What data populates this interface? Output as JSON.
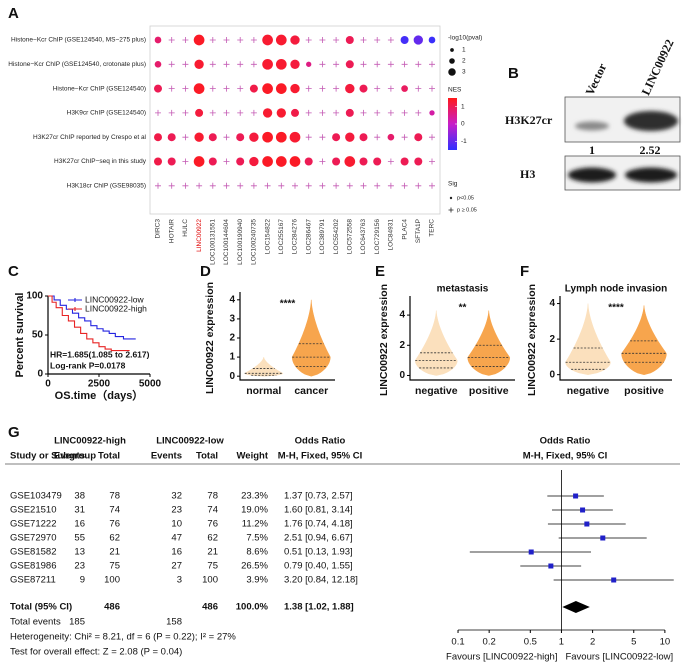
{
  "panel_a": {
    "label": "A",
    "rows": [
      "Histone−Kcr ChIP (GSE124540, MS−275 plus)",
      "Histone−Kcr ChIP (GSE124540, crotonate plus)",
      "Histone−Kcr ChIP (GSE124540)",
      "H3K9cr ChIP (GSE124540)",
      "H3K27cr ChIP reported by Crespo et al",
      "H3K27cr ChIP−seq in this study",
      "H3K18cr ChIP (GSE98035)"
    ],
    "columns": [
      "DIRC3",
      "HOTAIR",
      "HULC",
      "LINC00922",
      "LOC100131551",
      "LOC100144604",
      "LOC100190940",
      "LOC100240735",
      "LOC154822",
      "LOC255167",
      "LOC284276",
      "LOC286467",
      "LOC389791",
      "LOC554202",
      "LOC572558",
      "LOC643763",
      "LOC729156",
      "LOC84931",
      "PLAC4",
      "SFTA1P",
      "TERC"
    ],
    "column_colors": [
      "#333333",
      "#333333",
      "#333333",
      "#e00000",
      "#333333",
      "#333333",
      "#333333",
      "#333333",
      "#333333",
      "#333333",
      "#333333",
      "#333333",
      "#333333",
      "#333333",
      "#333333",
      "#333333",
      "#333333",
      "#333333",
      "#333333",
      "#333333",
      "#333333"
    ],
    "pval": [
      [
        1.5,
        null,
        null,
        3,
        null,
        null,
        null,
        null,
        3,
        3,
        2.5,
        null,
        null,
        null,
        2,
        null,
        null,
        null,
        2,
        2.5,
        1.5
      ],
      [
        1.5,
        null,
        null,
        2.5,
        null,
        null,
        null,
        null,
        3,
        3,
        2.5,
        1,
        null,
        null,
        2,
        null,
        null,
        null,
        null,
        null,
        null
      ],
      [
        2,
        null,
        null,
        3,
        null,
        null,
        null,
        2,
        3,
        3,
        2.5,
        null,
        null,
        null,
        2.5,
        2,
        null,
        null,
        1.5,
        null,
        null
      ],
      [
        null,
        null,
        null,
        2,
        null,
        null,
        null,
        null,
        2.5,
        2.5,
        2,
        null,
        null,
        null,
        2,
        null,
        null,
        null,
        null,
        null,
        1
      ],
      [
        2,
        2,
        null,
        2.5,
        2,
        null,
        2,
        2.5,
        3,
        3,
        3,
        null,
        null,
        2,
        2.5,
        2,
        null,
        1.5,
        null,
        2,
        null
      ],
      [
        2,
        2,
        null,
        3,
        2,
        null,
        2,
        2.5,
        3,
        3,
        3,
        2,
        null,
        2,
        3,
        2,
        2,
        null,
        2,
        2,
        null
      ],
      [
        null,
        null,
        null,
        null,
        null,
        null,
        null,
        null,
        null,
        null,
        null,
        null,
        null,
        null,
        null,
        null,
        null,
        null,
        null,
        null,
        null
      ]
    ],
    "nes": [
      [
        0.8,
        null,
        null,
        1.4,
        null,
        null,
        null,
        null,
        1.3,
        1.3,
        1.2,
        null,
        null,
        null,
        1.0,
        null,
        null,
        null,
        -1.3,
        -1.0,
        -1.4
      ],
      [
        0.8,
        null,
        null,
        1.3,
        null,
        null,
        null,
        null,
        1.3,
        1.3,
        1.2,
        0.6,
        null,
        null,
        1.0,
        null,
        null,
        null,
        null,
        null,
        null
      ],
      [
        1.0,
        null,
        null,
        1.4,
        null,
        null,
        null,
        1.1,
        1.4,
        1.4,
        1.3,
        null,
        null,
        null,
        1.2,
        1.0,
        null,
        null,
        0.9,
        null,
        null
      ],
      [
        null,
        null,
        null,
        1.2,
        null,
        null,
        null,
        null,
        1.3,
        1.3,
        1.1,
        null,
        null,
        null,
        1.0,
        null,
        null,
        null,
        null,
        null,
        0.3
      ],
      [
        1.1,
        1.0,
        null,
        1.3,
        1.0,
        null,
        1.0,
        1.2,
        1.4,
        1.4,
        1.3,
        null,
        null,
        1.0,
        1.2,
        1.0,
        null,
        0.8,
        null,
        1.0,
        null
      ],
      [
        1.1,
        1.0,
        null,
        1.4,
        1.0,
        null,
        1.0,
        1.2,
        1.4,
        1.4,
        1.4,
        1.0,
        null,
        1.0,
        1.3,
        1.0,
        1.0,
        null,
        1.0,
        1.0,
        null
      ],
      [
        null,
        null,
        null,
        null,
        null,
        null,
        null,
        null,
        null,
        null,
        null,
        null,
        null,
        null,
        null,
        null,
        null,
        null,
        null,
        null,
        null
      ]
    ],
    "size_title": "-log10(pval)",
    "size_legend": [
      1,
      2,
      3
    ],
    "nes_title": "NES",
    "nes_lim": [
      -1.5,
      1.5
    ],
    "nes_ticks": [
      1,
      0,
      -1
    ],
    "sig_title": "Sig",
    "sig_labels": [
      "p<0.05",
      "p ≥ 0.05"
    ]
  },
  "panel_b": {
    "label": "B",
    "lanes": [
      "Vector",
      "LINC00922"
    ],
    "blots": [
      "H3K27cr",
      "H3"
    ],
    "ratios": [
      1,
      2.52
    ]
  },
  "panel_c": {
    "label": "C",
    "ylabel": "Percent survival",
    "xlabel": "OS.time（days）",
    "xlim": [
      0,
      5000
    ],
    "xticks": [
      0,
      2500,
      5000
    ],
    "ylim": [
      0,
      100
    ],
    "yticks": [
      0,
      50,
      100
    ],
    "series": [
      {
        "name": "LINC00922-low",
        "color": "#2424e0",
        "x": [
          0,
          300,
          600,
          900,
          1200,
          1500,
          1800,
          2100,
          2400,
          2700,
          3000,
          3300,
          3700,
          4300
        ],
        "y": [
          100,
          95,
          88,
          83,
          78,
          72,
          68,
          62,
          58,
          55,
          52,
          48,
          45,
          45
        ]
      },
      {
        "name": "LINC00922-high",
        "color": "#e82424",
        "x": [
          0,
          200,
          400,
          700,
          1000,
          1300,
          1600,
          1900,
          2200,
          2500,
          2800,
          3100,
          3500,
          4000
        ],
        "y": [
          100,
          92,
          85,
          75,
          68,
          60,
          52,
          45,
          40,
          35,
          32,
          30,
          30,
          30
        ]
      }
    ],
    "annotations": [
      "HR=1.685(1.085 to 2.617)",
      "Log-rank P=0.0178"
    ]
  },
  "panel_d": {
    "label": "D",
    "ylabel": "LINC00922 expression",
    "categories": [
      "normal",
      "cancer"
    ],
    "colors": [
      "#fbe0bd",
      "#f7a54d"
    ],
    "violins": [
      {
        "min": 0,
        "q1": 0.05,
        "median": 0.15,
        "q3": 0.4,
        "max": 1
      },
      {
        "min": 0,
        "q1": 0.5,
        "median": 1.0,
        "q3": 1.7,
        "max": 4
      }
    ],
    "significance": "****",
    "ylim": [
      -0.2,
      4.2
    ],
    "yticks": [
      0,
      1,
      2,
      3,
      4
    ]
  },
  "panel_e": {
    "label": "E",
    "title": "metastasis",
    "ylabel": "LINC00922 expression",
    "categories": [
      "negative",
      "positive"
    ],
    "colors": [
      "#fbe0bd",
      "#f7a54d"
    ],
    "violins": [
      {
        "min": 0,
        "q1": 0.5,
        "median": 1.0,
        "q3": 1.5,
        "max": 4.3
      },
      {
        "min": 0,
        "q1": 0.6,
        "median": 1.2,
        "q3": 2.0,
        "max": 4.3
      }
    ],
    "significance": "**",
    "ylim": [
      -0.3,
      5
    ],
    "yticks": [
      0,
      2,
      4
    ]
  },
  "panel_f": {
    "label": "F",
    "title": "Lymph node invasion",
    "ylabel": "LINC00922  expression",
    "categories": [
      "negative",
      "positive"
    ],
    "colors": [
      "#fbe0bd",
      "#f7a54d"
    ],
    "violins": [
      {
        "min": 0,
        "q1": 0.3,
        "median": 0.7,
        "q3": 1.5,
        "max": 4
      },
      {
        "min": 0,
        "q1": 0.7,
        "median": 1.2,
        "q3": 1.9,
        "max": 3.9
      }
    ],
    "significance": "****",
    "ylim": [
      -0.3,
      4.2
    ],
    "yticks": [
      0,
      2,
      4
    ]
  },
  "panel_g": {
    "label": "G",
    "header_groups": [
      "LINC00922-high",
      "LINC00922-low",
      "Odds Ratio",
      "Odds Ratio"
    ],
    "columns": [
      "Study or Subgroup",
      "Events",
      "Total",
      "Events",
      "Total",
      "Weight",
      "M-H, Fixed, 95% CI",
      "M-H, Fixed, 95% CI"
    ],
    "rows": [
      {
        "study": "GSE103479",
        "events1": 38,
        "total1": 78,
        "events2": 32,
        "total2": 78,
        "weight": "23.3%",
        "ci_label": "1.37 [0.73, 2.57]",
        "or": [
          1.37,
          0.73,
          2.57
        ]
      },
      {
        "study": "GSE21510",
        "events1": 31,
        "total1": 74,
        "events2": 23,
        "total2": 74,
        "weight": "19.0%",
        "ci_label": "1.60 [0.81, 3.14]",
        "or": [
          1.6,
          0.81,
          3.14
        ]
      },
      {
        "study": "GSE71222",
        "events1": 16,
        "total1": 76,
        "events2": 10,
        "total2": 76,
        "weight": "11.2%",
        "ci_label": "1.76 [0.74, 4.18]",
        "or": [
          1.76,
          0.74,
          4.18
        ]
      },
      {
        "study": "GSE72970",
        "events1": 55,
        "total1": 62,
        "events2": 47,
        "total2": 62,
        "weight": "7.5%",
        "ci_label": "2.51 [0.94, 6.67]",
        "or": [
          2.51,
          0.94,
          6.67
        ]
      },
      {
        "study": "GSE81582",
        "events1": 13,
        "total1": 21,
        "events2": 16,
        "total2": 21,
        "weight": "8.6%",
        "ci_label": "0.51 [0.13, 1.93]",
        "or": [
          0.51,
          0.13,
          1.93
        ]
      },
      {
        "study": "GSE81986",
        "events1": 23,
        "total1": 75,
        "events2": 27,
        "total2": 75,
        "weight": "26.5%",
        "ci_label": "0.79 [0.40, 1.55]",
        "or": [
          0.79,
          0.4,
          1.55
        ]
      },
      {
        "study": "GSE87211",
        "events1": 9,
        "total1": 100,
        "events2": 3,
        "total2": 100,
        "weight": "3.9%",
        "ci_label": "3.20 [0.84, 12.18]",
        "or": [
          3.2,
          0.84,
          12.18
        ]
      }
    ],
    "total": {
      "study": "Total (95% CI)",
      "total1": 486,
      "total2": 486,
      "weight": "100.0%",
      "ci_label": "1.38 [1.02, 1.88]",
      "or": [
        1.38,
        1.02,
        1.88
      ]
    },
    "total_events": {
      "study": "Total events",
      "events1": 185,
      "events2": 158
    },
    "notes": [
      "Heterogeneity: Chi² = 8.21, df = 6 (P = 0.22); I² = 27%",
      "Test for overall effect: Z = 2.08 (P = 0.04)"
    ],
    "xlim": [
      0.07,
      14
    ],
    "xticks": [
      0.1,
      0.2,
      0.5,
      1,
      2,
      5,
      10
    ],
    "log": true,
    "favours": [
      "Favours [LINC00922-high]",
      "Favours [LINC00922-low]"
    ]
  }
}
